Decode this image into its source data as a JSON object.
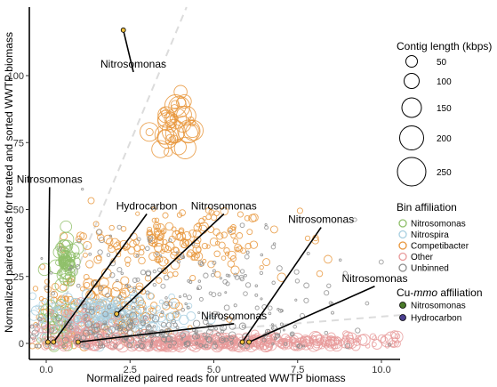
{
  "chart_data": {
    "type": "scatter",
    "xlabel": "Normalized paired reads for untreated WWTP biomass",
    "ylabel": "Normalized paired reads for treated and sorted WWTP biomass",
    "xlim": [
      -0.5,
      10.5
    ],
    "ylim": [
      -8,
      128
    ],
    "x_ticks": [
      0,
      2.5,
      5,
      7.5,
      10
    ],
    "x_tick_labels": [
      "0.0",
      "2.5",
      "5.0",
      "7.5",
      "10.0"
    ],
    "y_ticks": [
      0,
      25,
      50,
      75,
      100
    ],
    "y_tick_labels": [
      "0",
      "25",
      "50",
      "75",
      "100"
    ],
    "grid": false,
    "reference_lines": [
      {
        "slope": 30,
        "style": "dashed",
        "color": "#dcdcdc"
      },
      {
        "slope": 1,
        "style": "dashed",
        "color": "#dcdcdc"
      }
    ],
    "size_legend": {
      "title": "Contig length (kbps)",
      "values": [
        50,
        100,
        150,
        200,
        250
      ]
    },
    "bin_legend": {
      "title": "Bin affiliation",
      "entries": [
        {
          "label": "Nitrosomonas",
          "color": "#8fbf6a"
        },
        {
          "label": "Nitrospira",
          "color": "#a8cfe0"
        },
        {
          "label": "Competibacter",
          "color": "#e8953a"
        },
        {
          "label": "Other",
          "color": "#e89a9a"
        },
        {
          "label": "Unbinned",
          "color": "#8c8c8c"
        }
      ]
    },
    "cu_mmo_legend": {
      "title_prefix": "Cu-",
      "title_italic": "mmo",
      "title_suffix": " affiliation",
      "entries": [
        {
          "label": "Nitrosomonas",
          "color": "#4a7a2a"
        },
        {
          "label": "Hydrocarbon",
          "color": "#4a3f8f"
        }
      ]
    },
    "clusters": [
      {
        "name": "Competibacter",
        "color": "#e8953a",
        "cx": 3.8,
        "cy": 38,
        "sx": 1.6,
        "sy": 6,
        "n": 180,
        "rmin": 2,
        "rmax": 5
      },
      {
        "name": "Competibacter",
        "color": "#e8953a",
        "cx": 1.2,
        "cy": 12,
        "sx": 1.3,
        "sy": 8,
        "n": 200,
        "rmin": 2,
        "rmax": 6
      },
      {
        "name": "Competibacter",
        "color": "#e8953a",
        "cx": 3.8,
        "cy": 82,
        "sx": 0.35,
        "sy": 5,
        "n": 40,
        "rmin": 3,
        "rmax": 13
      },
      {
        "name": "Nitrosomonas",
        "color": "#8fbf6a",
        "cx": 0.55,
        "cy": 31,
        "sx": 0.15,
        "sy": 4,
        "n": 60,
        "rmin": 2,
        "rmax": 8
      },
      {
        "name": "Nitrosomonas",
        "color": "#8fbf6a",
        "cx": 0.3,
        "cy": 6,
        "sx": 0.3,
        "sy": 5,
        "n": 40,
        "rmin": 2,
        "rmax": 7
      },
      {
        "name": "Nitrospira",
        "color": "#a8cfe0",
        "cx": 1.6,
        "cy": 10,
        "sx": 1.2,
        "sy": 4,
        "n": 220,
        "rmin": 2,
        "rmax": 6
      },
      {
        "name": "Other",
        "color": "#e89a9a",
        "cx": 5.5,
        "cy": 0.5,
        "sx": 3.0,
        "sy": 1.2,
        "n": 420,
        "rmin": 2,
        "rmax": 7
      },
      {
        "name": "Other",
        "color": "#e89a9a",
        "cx": 1.0,
        "cy": 5,
        "sx": 1.0,
        "sy": 4,
        "n": 80,
        "rmin": 2,
        "rmax": 5
      },
      {
        "name": "Unbinned",
        "color": "#8c8c8c",
        "cx": 4.0,
        "cy": 18,
        "sx": 2.6,
        "sy": 14,
        "n": 220,
        "rmin": 1,
        "rmax": 3
      },
      {
        "name": "Unbinned",
        "color": "#8c8c8c",
        "cx": 3.0,
        "cy": 4,
        "sx": 2.5,
        "sy": 3,
        "n": 150,
        "rmin": 1,
        "rmax": 4
      }
    ],
    "highlight_points": [
      {
        "label": "Nitrosomonas",
        "x": 2.3,
        "y": 117,
        "affiliation": "Nitrosomonas"
      },
      {
        "label": "Nitrosomonas",
        "x": 0.05,
        "y": 0.5,
        "affiliation": "Nitrosomonas"
      },
      {
        "label": "Hydrocarbon",
        "x": 0.22,
        "y": 0.5,
        "affiliation": "Nitrosomonas"
      },
      {
        "label": "Nitrosomonas",
        "x": 2.1,
        "y": 11,
        "affiliation": "Nitrosomonas"
      },
      {
        "label": "Nitrosomonas",
        "x": 0.95,
        "y": 0.5,
        "affiliation": "Nitrosomonas"
      },
      {
        "label": "Nitrosomonas",
        "x": 5.85,
        "y": 0.5,
        "affiliation": "Nitrosomonas"
      },
      {
        "label": "Nitrosomonas",
        "x": 6.05,
        "y": 0.5,
        "affiliation": "Nitrosomonas"
      }
    ],
    "annotations": [
      {
        "text": "Nitrosomonas",
        "target_index": 0,
        "tx": 2.6,
        "ty": 103
      },
      {
        "text": "Nitrosomonas",
        "target_index": 1,
        "tx": 0.1,
        "ty": 60
      },
      {
        "text": "Hydrocarbon",
        "target_index": 2,
        "tx": 3.0,
        "ty": 50
      },
      {
        "text": "Nitrosomonas",
        "target_index": 3,
        "tx": 5.3,
        "ty": 50
      },
      {
        "text": "Nitrosomonas",
        "target_index": 4,
        "tx": 5.6,
        "ty": 9
      },
      {
        "text": "Nitrosomonas",
        "target_index": 5,
        "tx": 8.2,
        "ty": 45
      },
      {
        "text": "Nitrosomonas",
        "target_index": 6,
        "tx": 9.8,
        "ty": 23
      }
    ]
  }
}
